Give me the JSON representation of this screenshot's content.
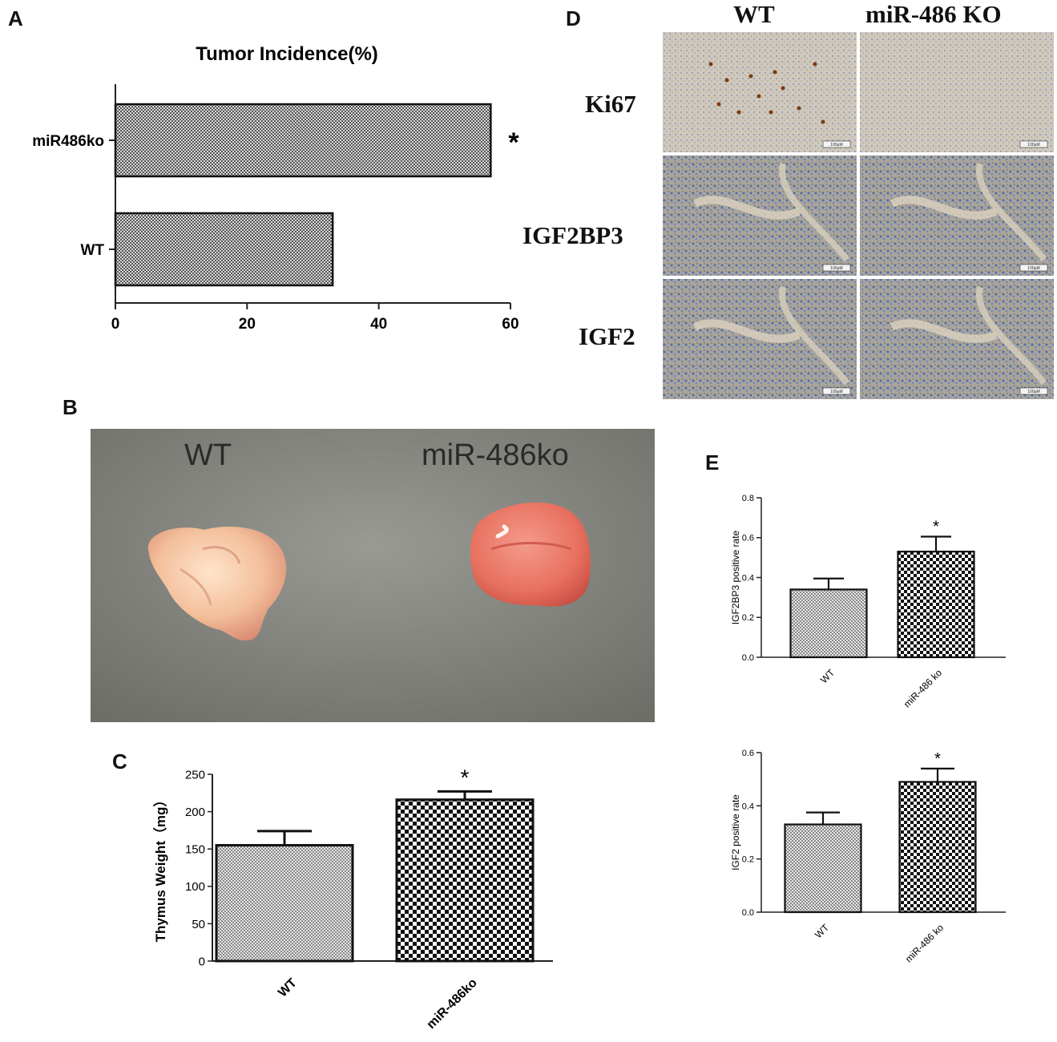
{
  "panels": {
    "a": "A",
    "b": "B",
    "c": "C",
    "d": "D",
    "e": "E"
  },
  "chart_data": [
    {
      "id": "A",
      "type": "bar",
      "orientation": "horizontal",
      "title": "Tumor Incidence(%)",
      "categories": [
        "miR486ko",
        "WT"
      ],
      "values": [
        57,
        33
      ],
      "xlim": [
        0,
        60
      ],
      "xticks": [
        "0",
        "20",
        "40",
        "60"
      ],
      "annotations": [
        {
          "category": "miR486ko",
          "text": "*"
        }
      ]
    },
    {
      "id": "C",
      "type": "bar",
      "ylabel": "Thymus Weight（mg）",
      "categories": [
        "WT",
        "miR-486ko"
      ],
      "values": [
        155,
        216
      ],
      "errors": [
        19,
        11
      ],
      "ylim": [
        0,
        250
      ],
      "yticks": [
        "0",
        "50",
        "100",
        "150",
        "200",
        "250"
      ],
      "annotations": [
        {
          "category": "miR-486ko",
          "text": "*"
        }
      ]
    },
    {
      "id": "E1",
      "type": "bar",
      "ylabel": "IGF2BP3 positive rate",
      "categories": [
        "WT",
        "miR-486 ko"
      ],
      "values": [
        0.34,
        0.53
      ],
      "errors": [
        0.055,
        0.075
      ],
      "ylim": [
        0,
        0.8
      ],
      "yticks": [
        "0.0",
        "0.2",
        "0.4",
        "0.6",
        "0.8"
      ],
      "annotations": [
        {
          "category": "miR-486 ko",
          "text": "*"
        }
      ]
    },
    {
      "id": "E2",
      "type": "bar",
      "ylabel": "IGF2 positive rate",
      "categories": [
        "WT",
        "miR-486 ko"
      ],
      "values": [
        0.33,
        0.49
      ],
      "errors": [
        0.045,
        0.05
      ],
      "ylim": [
        0,
        0.6
      ],
      "yticks": [
        "0.0",
        "0.2",
        "0.4",
        "0.6"
      ],
      "annotations": [
        {
          "category": "miR-486 ko",
          "text": "*"
        }
      ]
    }
  ],
  "photo_b": {
    "label_wt": "WT",
    "label_ko": "miR-486ko"
  },
  "micrographs_d": {
    "columns": [
      "WT",
      "miR-486 KO"
    ],
    "rows": [
      "Ki67",
      "IGF2BP3",
      "IGF2"
    ],
    "scale_label": "100μM"
  }
}
